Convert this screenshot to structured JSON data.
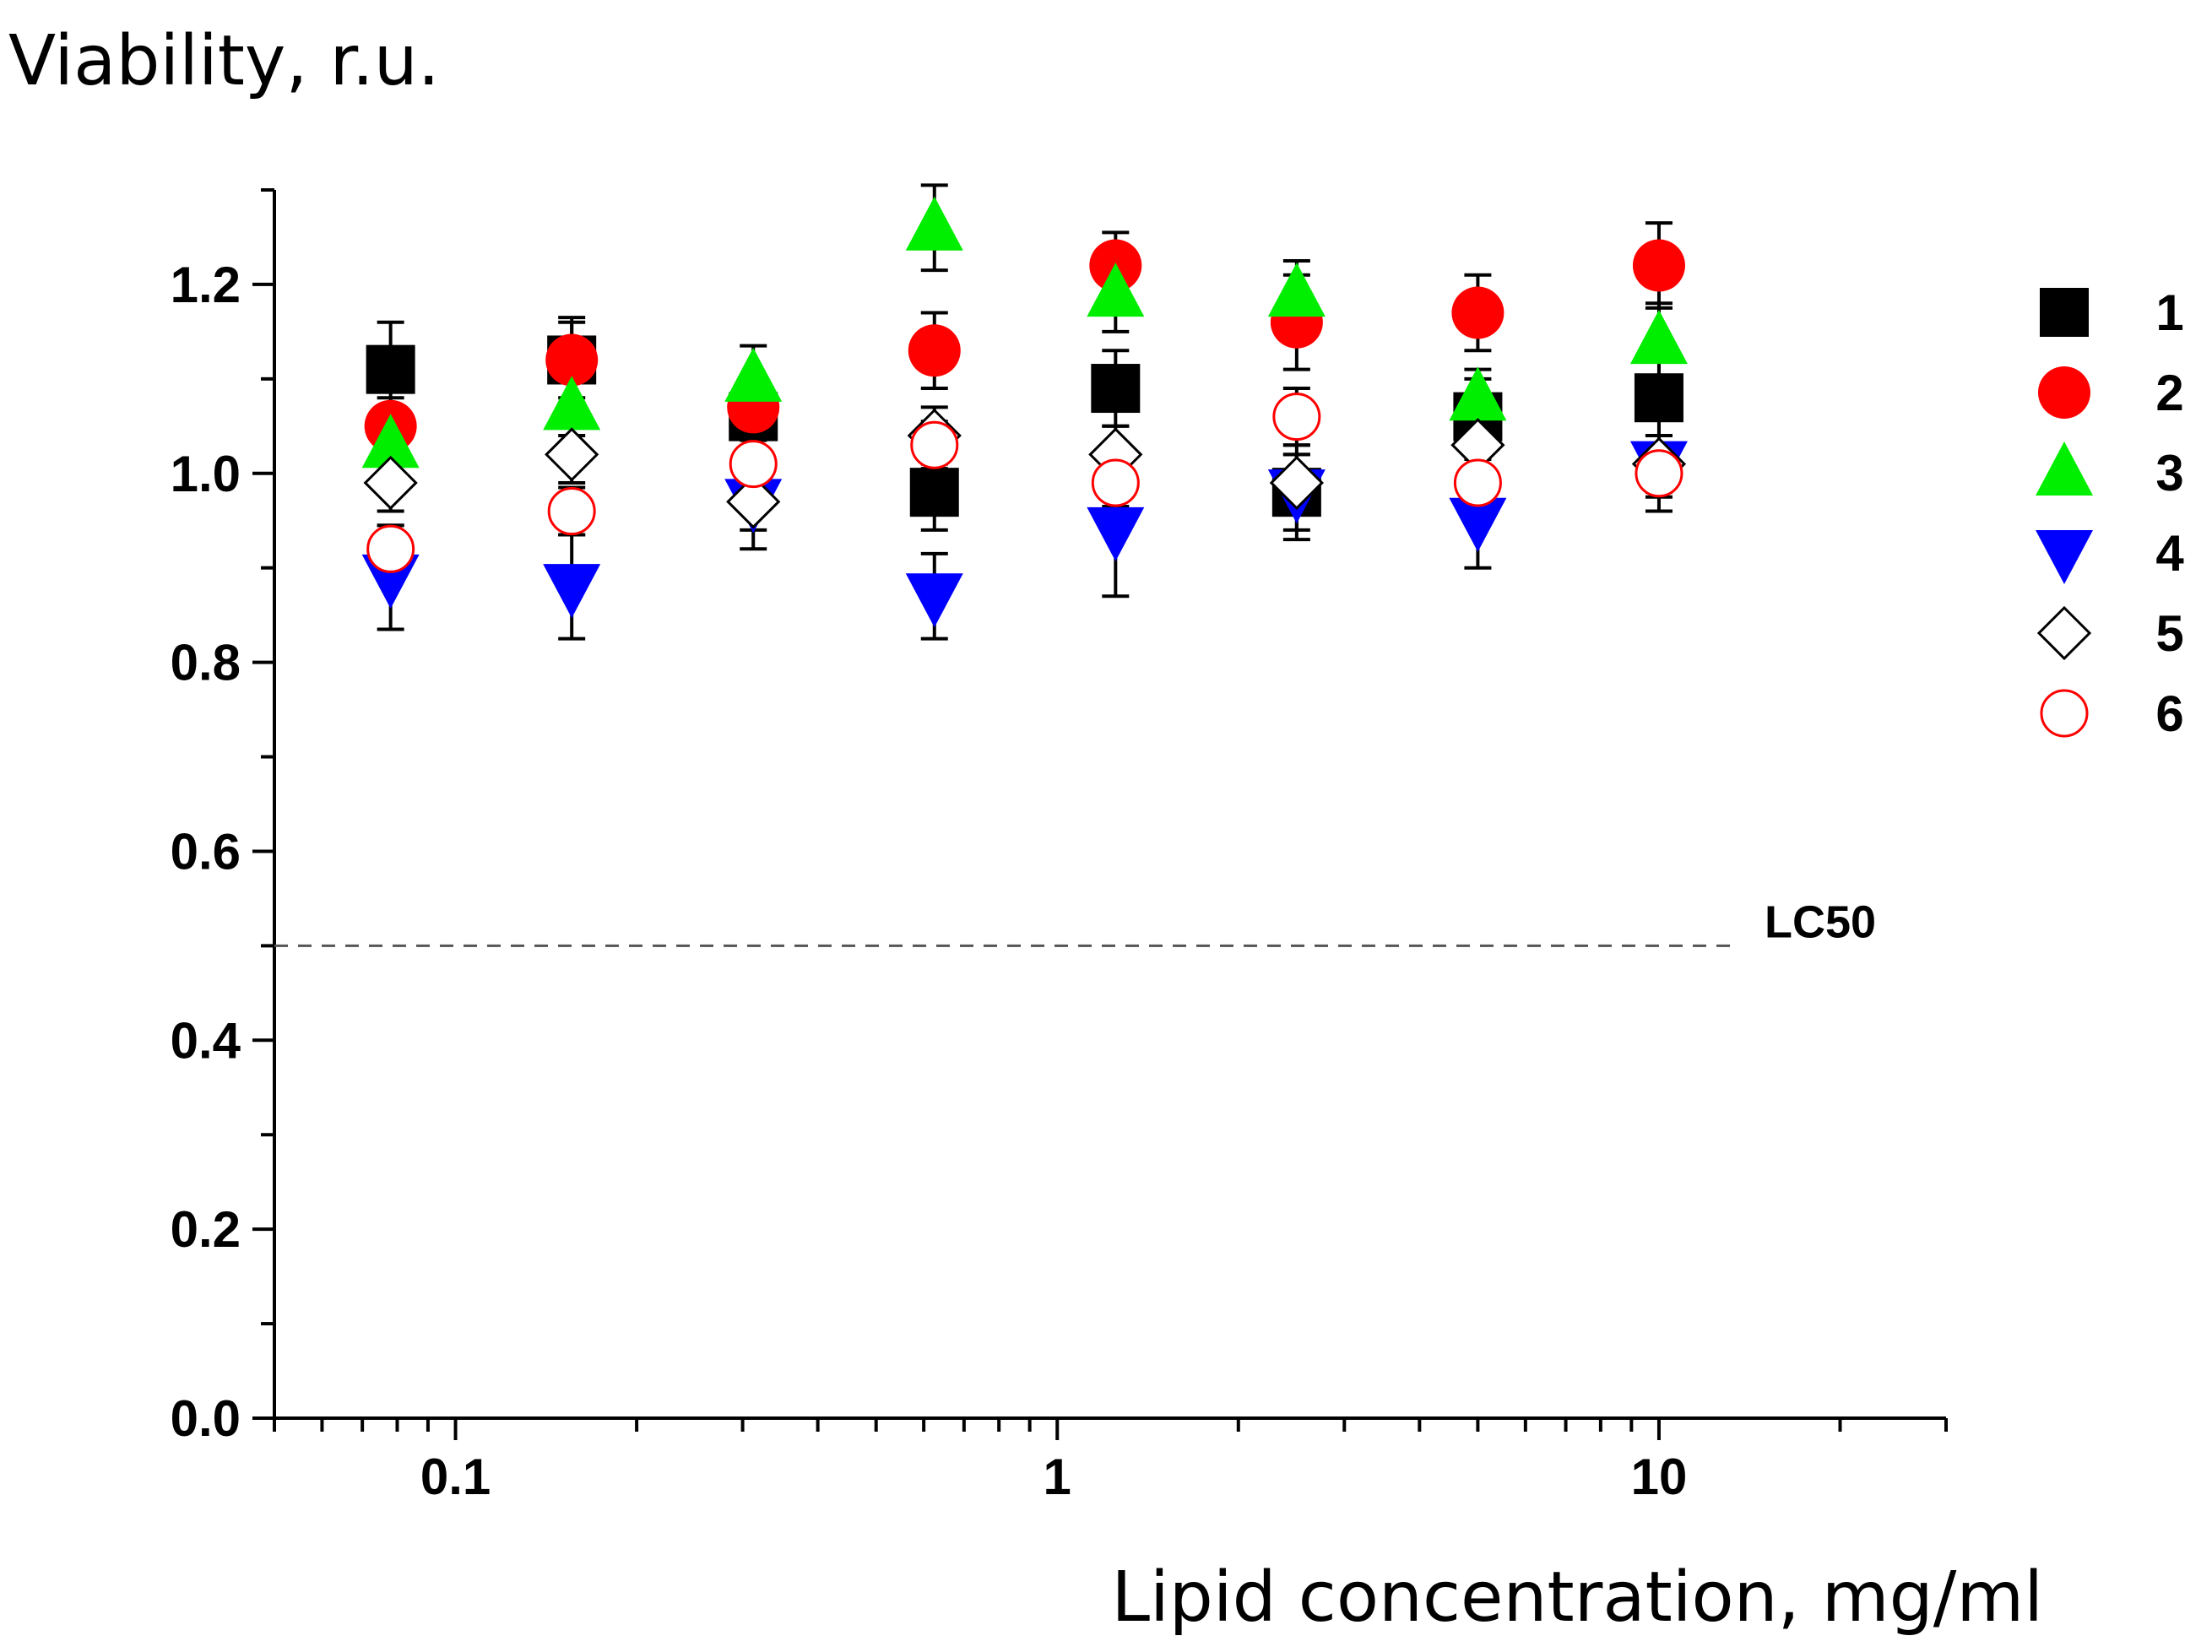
{
  "chart_data": {
    "type": "scatter",
    "ylabel": "Viability, r.u.",
    "xlabel": "Lipid concentration, mg/ml",
    "x_scale": "log",
    "xlim": [
      0.05,
      30
    ],
    "ylim": [
      0.0,
      1.3
    ],
    "x_ticks": [
      0.1,
      1,
      10
    ],
    "x_tick_labels": [
      "0.1",
      "1",
      "10"
    ],
    "y_ticks": [
      0.0,
      0.2,
      0.4,
      0.6,
      0.8,
      1.0,
      1.2
    ],
    "y_tick_labels": [
      "0.0",
      "0.2",
      "0.4",
      "0.6",
      "0.8",
      "1.0",
      "1.2"
    ],
    "x": [
      0.078,
      0.156,
      0.3125,
      0.625,
      1.25,
      2.5,
      5,
      10
    ],
    "reference_line": {
      "y": 0.5,
      "label": "LC50",
      "style": "dashed"
    },
    "legend_position": "right",
    "series": [
      {
        "name": "1",
        "marker": "square",
        "filled": true,
        "color": "#000000",
        "values": [
          1.11,
          1.12,
          1.06,
          0.98,
          1.09,
          0.98,
          1.06,
          1.08
        ],
        "errors": [
          0.05,
          0.045,
          0.04,
          0.04,
          0.04,
          0.04,
          0.04,
          0.04
        ]
      },
      {
        "name": "2",
        "marker": "circle",
        "filled": true,
        "color": "#ff0000",
        "values": [
          1.05,
          1.12,
          1.07,
          1.13,
          1.22,
          1.16,
          1.17,
          1.22
        ],
        "errors": [
          0.03,
          0.04,
          0.03,
          0.04,
          0.035,
          0.05,
          0.04,
          0.045
        ]
      },
      {
        "name": "3",
        "marker": "triangle-up",
        "filled": true,
        "color": "#00ee00",
        "values": [
          1.03,
          1.07,
          1.1,
          1.26,
          1.19,
          1.19,
          1.08,
          1.14
        ],
        "errors": [
          0.03,
          0.03,
          0.035,
          0.045,
          0.04,
          0.035,
          0.03,
          0.04
        ]
      },
      {
        "name": "4",
        "marker": "triangle-down",
        "filled": true,
        "color": "#0000ff",
        "values": [
          0.89,
          0.88,
          0.97,
          0.87,
          0.94,
          0.98,
          0.95,
          1.01
        ],
        "errors": [
          0.055,
          0.055,
          0.05,
          0.045,
          0.07,
          0.05,
          0.05,
          0.05
        ]
      },
      {
        "name": "5",
        "marker": "diamond",
        "filled": false,
        "color": "#000000",
        "values": [
          0.99,
          1.02,
          0.97,
          1.04,
          1.02,
          0.99,
          1.03,
          1.01
        ],
        "errors": [
          0.03,
          0.03,
          0.03,
          0.03,
          0.03,
          0.03,
          0.03,
          0.03
        ]
      },
      {
        "name": "6",
        "marker": "circle",
        "filled": false,
        "color": "#ff0000",
        "values": [
          0.92,
          0.96,
          1.01,
          1.03,
          0.99,
          1.06,
          0.99,
          1.0
        ],
        "errors": [
          0.025,
          0.025,
          0.025,
          0.025,
          0.025,
          0.03,
          0.025,
          0.025
        ]
      }
    ]
  }
}
